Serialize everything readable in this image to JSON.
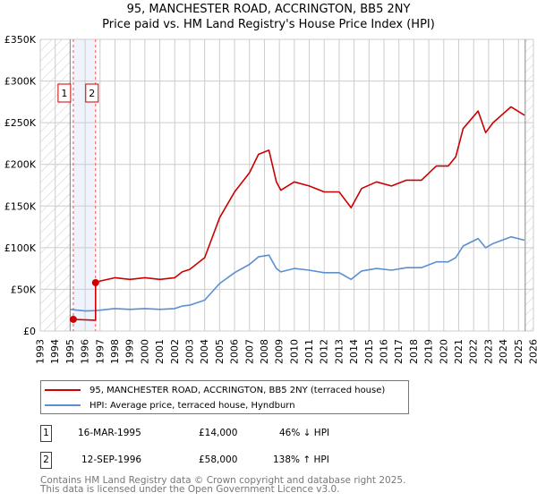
{
  "chart_data": {
    "type": "line",
    "title": "95, MANCHESTER ROAD, ACCRINGTON, BB5 2NY",
    "subtitle": "Price paid vs. HM Land Registry's House Price Index (HPI)",
    "xlim": [
      1993,
      2026
    ],
    "ylim": [
      0,
      350000
    ],
    "x_ticks": [
      "1993",
      "1994",
      "1995",
      "1996",
      "1997",
      "1998",
      "1999",
      "2000",
      "2001",
      "2002",
      "2003",
      "2004",
      "2005",
      "2006",
      "2007",
      "2008",
      "2009",
      "2010",
      "2011",
      "2012",
      "2013",
      "2014",
      "2015",
      "2016",
      "2017",
      "2018",
      "2019",
      "2020",
      "2021",
      "2022",
      "2023",
      "2024",
      "2025",
      "2026"
    ],
    "y_ticks": [
      {
        "v": 0,
        "label": "£0"
      },
      {
        "v": 50000,
        "label": "£50K"
      },
      {
        "v": 100000,
        "label": "£100K"
      },
      {
        "v": 150000,
        "label": "£150K"
      },
      {
        "v": 200000,
        "label": "£200K"
      },
      {
        "v": 250000,
        "label": "£250K"
      },
      {
        "v": 300000,
        "label": "£300K"
      },
      {
        "v": 350000,
        "label": "£350K"
      }
    ],
    "grid": true,
    "hatched_before": 1995.0,
    "hatched_after": 2025.45,
    "shaded_range": [
      1995.21,
      1996.7
    ],
    "series": [
      {
        "name": "95, MANCHESTER ROAD, ACCRINGTON, BB5 2NY (terraced house)",
        "color": "#cc0000",
        "x": [
          1995.21,
          1996.7,
          1996.7,
          1997,
          1998,
          1999,
          2000,
          2001,
          2002,
          2002.5,
          2003,
          2004,
          2005,
          2006,
          2007,
          2007.6,
          2008.3,
          2008.8,
          2009.1,
          2010,
          2011,
          2012,
          2013,
          2013.8,
          2014.5,
          2015.5,
          2016.5,
          2017.5,
          2018.5,
          2019.5,
          2020.3,
          2020.8,
          2021.3,
          2022.3,
          2022.8,
          2023.3,
          2024.5,
          2025.4
        ],
        "y": [
          14000,
          13000,
          58000,
          60000,
          64000,
          62000,
          64000,
          62000,
          64000,
          71000,
          74000,
          88000,
          136000,
          167000,
          190000,
          212000,
          217000,
          179000,
          169000,
          179000,
          174000,
          167000,
          167000,
          148000,
          171000,
          179000,
          174000,
          181000,
          181000,
          198000,
          198000,
          209000,
          243000,
          264000,
          238000,
          250000,
          269000,
          259000
        ]
      },
      {
        "name": "HPI: Average price, terraced house, Hyndburn",
        "color": "#5b8fd0",
        "x": [
          1995.0,
          1996,
          1996.7,
          1997,
          1998,
          1999,
          2000,
          2001,
          2002,
          2002.5,
          2003,
          2004,
          2005,
          2006,
          2007,
          2007.6,
          2008.3,
          2008.8,
          2009.1,
          2010,
          2011,
          2012,
          2013,
          2013.8,
          2014.5,
          2015.5,
          2016.5,
          2017.5,
          2018.5,
          2019.5,
          2020.3,
          2020.8,
          2021.3,
          2022.3,
          2022.8,
          2023.3,
          2024.5,
          2025.4
        ],
        "y": [
          26000,
          24000,
          24500,
          25000,
          27000,
          26000,
          27000,
          26000,
          27000,
          30000,
          31000,
          37000,
          57000,
          70000,
          80000,
          89000,
          91000,
          75000,
          71000,
          75000,
          73000,
          70000,
          70000,
          62000,
          72000,
          75000,
          73000,
          76000,
          76000,
          83000,
          83000,
          88000,
          102000,
          111000,
          100000,
          105000,
          113000,
          109000
        ]
      }
    ],
    "annotations": [
      {
        "label": "1",
        "x": 1995.21,
        "y": 14000
      },
      {
        "label": "2",
        "x": 1996.7,
        "y": 58000
      }
    ],
    "legend_position": "bottom"
  },
  "title_line1": "95, MANCHESTER ROAD, ACCRINGTON, BB5 2NY",
  "title_line2": "Price paid vs. HM Land Registry's House Price Index (HPI)",
  "legend": [
    {
      "label": "95, MANCHESTER ROAD, ACCRINGTON, BB5 2NY (terraced house)",
      "color": "#cc0000"
    },
    {
      "label": "HPI: Average price, terraced house, Hyndburn",
      "color": "#5b8fd0"
    }
  ],
  "transactions": [
    {
      "num": "1",
      "date": "16-MAR-1995",
      "price": "£14,000",
      "hpi": "46% ↓ HPI"
    },
    {
      "num": "2",
      "date": "12-SEP-1996",
      "price": "£58,000",
      "hpi": "138% ↑ HPI"
    }
  ],
  "footer": {
    "line1": "Contains HM Land Registry data © Crown copyright and database right 2025.",
    "line2": "This data is licensed under the Open Government Licence v3.0."
  }
}
